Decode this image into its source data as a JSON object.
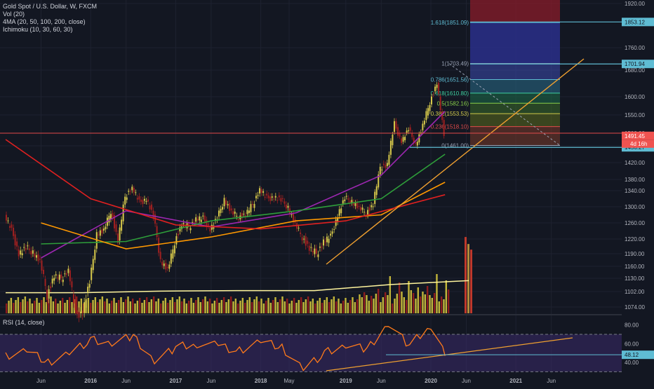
{
  "legend": {
    "symbol": "Gold Spot / U.S. Dollar, W, FXCM",
    "volume": "Vol (20)",
    "ma": "4MA (20, 50, 100, 200, close)",
    "ichimoku": "Ichimoku (10, 30, 60, 30)"
  },
  "rsi_legend": "RSI (14, close)",
  "colors": {
    "background": "#131722",
    "grid": "#1e2230",
    "up": "#d6c84a",
    "down": "#a02020",
    "ma20": "#9c27b0",
    "ma50": "#2e9e3a",
    "ma100": "#ff9800",
    "ma200": "#e02020",
    "trendline": "#f0a030",
    "hline": "#5fbcd3",
    "rsi": "#ff7a1a",
    "rsi_band": "#3a2a6a"
  },
  "chart_data": [
    {
      "type": "candlestick",
      "title": "Gold Spot / U.S. Dollar, W, FXCM",
      "x_ticks": [
        "Jun",
        "2016",
        "Jun",
        "2017",
        "Jun",
        "2018",
        "May",
        "2019",
        "Jun",
        "2020",
        "Jun",
        "2021",
        "Jun"
      ],
      "x_range": [
        "2015-01",
        "2021-10"
      ],
      "y_ticks": [
        1074.0,
        1102.0,
        1130.0,
        1160.0,
        1190.0,
        1220.0,
        1260.0,
        1300.0,
        1340.0,
        1380.0,
        1420.0,
        1460.0,
        1500.0,
        1550.0,
        1600.0,
        1680.0,
        1760.0,
        1920.0
      ],
      "y_tick_labels": [
        "1074.00",
        "1102.00",
        "1130.00",
        "1160.00",
        "1190.00",
        "1220.00",
        "1260.00",
        "1300.00",
        "1340.00",
        "1380.00",
        "1420.00",
        "1460.00",
        "1500.00",
        "1550.00",
        "1600.00",
        "1680.00",
        "1760.00",
        "1920.00"
      ],
      "ylim": [
        1060,
        1930
      ],
      "price_labels": [
        {
          "value": 1853.12,
          "text": "1853.12",
          "kind": "hline"
        },
        {
          "value": 1701.94,
          "text": "1701.94",
          "kind": "hline"
        },
        {
          "value": 1491.45,
          "text": "1491.45",
          "kind": "last"
        },
        {
          "value": 1456.27,
          "text": "1456.27",
          "kind": "hline"
        }
      ],
      "countdown": "4d 16h",
      "fib_levels": [
        {
          "ratio": "1.618",
          "value": 1851.09,
          "text": "1.618(1851.09)"
        },
        {
          "ratio": "1",
          "value": 1703.49,
          "text": "1(1703.49)"
        },
        {
          "ratio": "0.786",
          "value": 1651.56,
          "text": "0.786(1651.56)"
        },
        {
          "ratio": "0.618",
          "value": 1610.8,
          "text": "0.618(1610.80)"
        },
        {
          "ratio": "0.5",
          "value": 1582.16,
          "text": "0.5(1582.16)"
        },
        {
          "ratio": "0.382",
          "value": 1553.53,
          "text": "0.382(1553.53)"
        },
        {
          "ratio": "0.236",
          "value": 1518.1,
          "text": "0.236(1518.10)"
        },
        {
          "ratio": "0",
          "value": 1461.0,
          "text": "0(1461.00)"
        }
      ],
      "close_series": {
        "x": [
          "2015-01",
          "2015-02",
          "2015-03",
          "2015-04",
          "2015-05",
          "2015-06",
          "2015-07",
          "2015-08",
          "2015-09",
          "2015-10",
          "2015-11",
          "2015-12",
          "2016-01",
          "2016-02",
          "2016-03",
          "2016-04",
          "2016-05",
          "2016-06",
          "2016-07",
          "2016-08",
          "2016-09",
          "2016-10",
          "2016-11",
          "2016-12",
          "2017-01",
          "2017-02",
          "2017-03",
          "2017-04",
          "2017-05",
          "2017-06",
          "2017-07",
          "2017-08",
          "2017-09",
          "2017-10",
          "2017-11",
          "2017-12",
          "2018-01",
          "2018-02",
          "2018-03",
          "2018-04",
          "2018-05",
          "2018-06",
          "2018-07",
          "2018-08",
          "2018-09",
          "2018-10",
          "2018-11",
          "2018-12",
          "2019-01",
          "2019-02",
          "2019-03",
          "2019-04",
          "2019-05",
          "2019-06",
          "2019-07",
          "2019-08",
          "2019-09",
          "2019-10",
          "2019-11",
          "2019-12",
          "2020-01",
          "2020-02",
          "2020-03"
        ],
        "values": [
          1280,
          1240,
          1190,
          1200,
          1195,
          1170,
          1095,
          1135,
          1130,
          1150,
          1060,
          1065,
          1120,
          1235,
          1240,
          1290,
          1215,
          1325,
          1350,
          1310,
          1320,
          1275,
          1175,
          1150,
          1215,
          1255,
          1250,
          1270,
          1270,
          1245,
          1270,
          1320,
          1285,
          1275,
          1280,
          1305,
          1345,
          1320,
          1325,
          1315,
          1300,
          1255,
          1225,
          1200,
          1190,
          1215,
          1225,
          1280,
          1320,
          1315,
          1295,
          1285,
          1305,
          1410,
          1415,
          1525,
          1475,
          1510,
          1465,
          1520,
          1585,
          1640,
          1491
        ]
      },
      "moving_averages": [
        {
          "name": "MA 20",
          "period": 20,
          "x": [
            "2015-06",
            "2016-06",
            "2017-06",
            "2018-06",
            "2019-06",
            "2020-03"
          ],
          "values": [
            1180,
            1290,
            1250,
            1285,
            1390,
            1560
          ]
        },
        {
          "name": "MA 50",
          "period": 50,
          "x": [
            "2015-06",
            "2016-06",
            "2017-06",
            "2018-06",
            "2019-06",
            "2020-03"
          ],
          "values": [
            1210,
            1215,
            1265,
            1290,
            1320,
            1440
          ]
        },
        {
          "name": "MA 100",
          "period": 100,
          "x": [
            "2015-06",
            "2016-06",
            "2017-06",
            "2018-06",
            "2019-06",
            "2020-03"
          ],
          "values": [
            1260,
            1200,
            1225,
            1265,
            1280,
            1370
          ]
        },
        {
          "name": "MA 200",
          "period": 200,
          "x": [
            "2015-01",
            "2016-01",
            "2017-01",
            "2018-01",
            "2019-01",
            "2020-03"
          ],
          "values": [
            1480,
            1320,
            1255,
            1245,
            1265,
            1330
          ]
        }
      ],
      "volume": {
        "yellow_avg": [
          1100,
          1100,
          1103,
          1104,
          1104,
          1117,
          1125
        ],
        "spike_max": 1225
      }
    },
    {
      "type": "line",
      "title": "RSI (14, close)",
      "y_tick_labels": [
        "80.00",
        "60.00",
        "40.00"
      ],
      "ylim": [
        28,
        88
      ],
      "levels": [
        70,
        30
      ],
      "last_value": 48.12,
      "last_label": "48.12",
      "x": [
        "2015-01",
        "2015-04",
        "2015-07",
        "2015-10",
        "2016-01",
        "2016-04",
        "2016-07",
        "2016-10",
        "2017-01",
        "2017-04",
        "2017-07",
        "2017-10",
        "2018-01",
        "2018-04",
        "2018-07",
        "2018-10",
        "2019-01",
        "2019-04",
        "2019-07",
        "2019-10",
        "2020-01",
        "2020-03"
      ],
      "values": [
        46,
        52,
        40,
        50,
        64,
        60,
        68,
        42,
        56,
        60,
        58,
        52,
        62,
        56,
        33,
        50,
        58,
        54,
        82,
        58,
        80,
        47
      ]
    }
  ]
}
